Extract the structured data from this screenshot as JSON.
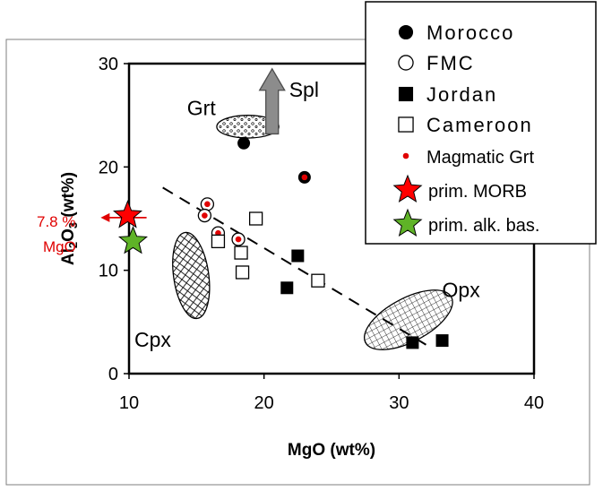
{
  "chart_data": {
    "type": "scatter",
    "xlabel": "MgO (wt%)",
    "ylabel_parts": {
      "a": "Al",
      "sub1": "2",
      "b": "O",
      "sub2": "3",
      "c": " (wt%)"
    },
    "xlim": [
      10,
      40
    ],
    "ylim": [
      0,
      30
    ],
    "x_ticks": [
      10,
      20,
      30,
      40
    ],
    "y_ticks": [
      0,
      10,
      20,
      30
    ],
    "grid": false,
    "legend_position": "top-right",
    "legend": [
      {
        "key": "morocco",
        "label": "Morocco",
        "marker": "filled-circle"
      },
      {
        "key": "fmc",
        "label": "FMC",
        "marker": "open-circle"
      },
      {
        "key": "jordan",
        "label": "Jordan",
        "marker": "filled-square"
      },
      {
        "key": "cameroon",
        "label": "Cameroon",
        "marker": "open-square"
      },
      {
        "key": "magmatic",
        "label": "Magmatic Grt",
        "marker": "small-red-dot"
      },
      {
        "key": "morb",
        "label": "prim. MORB",
        "marker": "red-star"
      },
      {
        "key": "alkbas",
        "label": "prim. alk. bas.",
        "marker": "green-star"
      }
    ],
    "series": [
      {
        "name": "Morocco",
        "marker": "filled-circle",
        "x": [
          18.5,
          23.0
        ],
        "y": [
          22.3,
          19.0
        ],
        "magmatic": [
          false,
          true
        ]
      },
      {
        "name": "FMC",
        "marker": "open-circle",
        "x": [
          15.8,
          15.6,
          16.6,
          18.1
        ],
        "y": [
          16.4,
          15.3,
          13.6,
          13.0
        ],
        "magmatic": [
          true,
          true,
          true,
          true
        ]
      },
      {
        "name": "Jordan",
        "marker": "filled-square",
        "x": [
          21.7,
          22.5,
          31.0,
          33.2
        ],
        "y": [
          8.3,
          11.4,
          3.0,
          3.2
        ]
      },
      {
        "name": "Cameroon",
        "marker": "open-square",
        "x": [
          16.6,
          18.3,
          18.4,
          19.4,
          24.0
        ],
        "y": [
          12.8,
          11.7,
          9.8,
          15.0,
          9.0
        ]
      },
      {
        "name": "prim. MORB",
        "marker": "red-star",
        "x": [
          9.9
        ],
        "y": [
          15.3
        ]
      },
      {
        "name": "prim. alk. bas.",
        "marker": "green-star",
        "x": [
          10.3
        ],
        "y": [
          12.8
        ]
      }
    ],
    "trend_line": {
      "x": [
        12.5,
        32.0
      ],
      "y": [
        18.0,
        2.8
      ],
      "style": "dashed"
    },
    "regions": [
      {
        "key": "grt",
        "label": "Grt",
        "cx": 18.8,
        "cy": 23.9,
        "rx": 2.3,
        "ry": 1.1,
        "angle": 0,
        "fill": "dotted"
      },
      {
        "key": "cpx",
        "label": "Cpx",
        "cx": 14.6,
        "cy": 9.5,
        "rx": 1.3,
        "ry": 4.2,
        "angle": -8,
        "fill": "crosshatch"
      },
      {
        "key": "opx",
        "label": "Opx",
        "cx": 30.7,
        "cy": 5.2,
        "rx": 3.6,
        "ry": 2.1,
        "angle": -28,
        "fill": "grid"
      }
    ],
    "region_label_pos": {
      "grt": [
        14.3,
        25.0
      ],
      "cpx": [
        10.4,
        2.6
      ],
      "opx": [
        33.2,
        7.4
      ]
    },
    "spl_arrow": {
      "label": "Spl",
      "x": 20.6,
      "y_start": 23.2,
      "y_end": 29.5
    },
    "annotation": {
      "line1": "7.8 %",
      "line2": "MgO",
      "arrow_from_x": 11.3,
      "arrow_to_x": 7.9,
      "y": 15.1
    }
  }
}
